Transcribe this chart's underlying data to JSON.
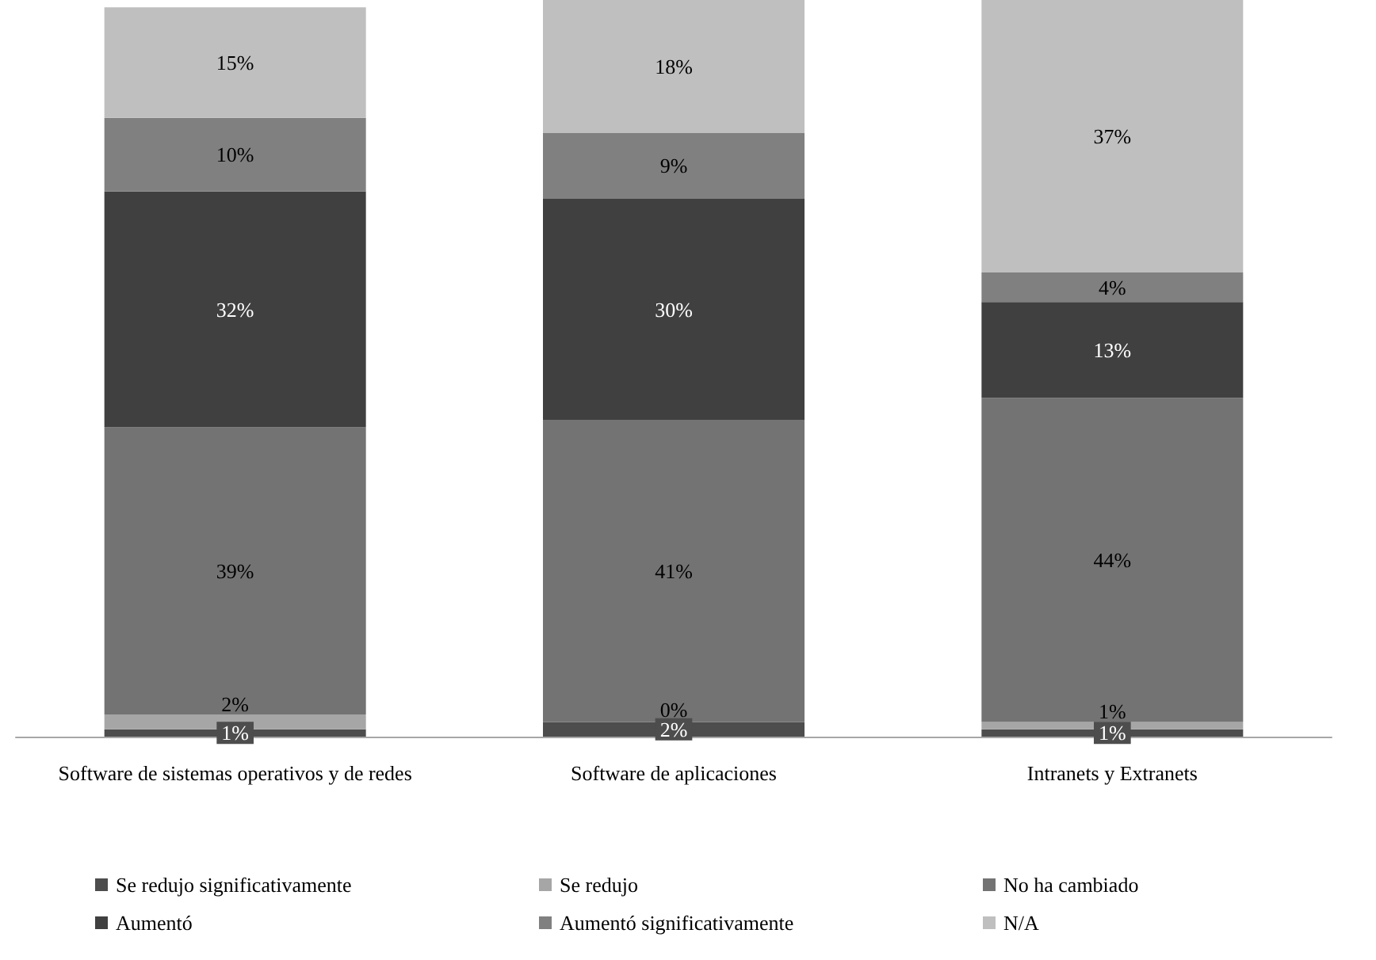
{
  "chart_data": {
    "type": "bar",
    "stacked": true,
    "categories": [
      "Software de sistemas operativos y de redes",
      "Software de aplicaciones",
      "Intranets y Extranets"
    ],
    "series": [
      {
        "name": "Se redujo significativamente",
        "color": "#4d4d4d",
        "values": [
          1,
          2,
          1
        ],
        "value_labels": [
          "1%",
          "2%",
          "1%"
        ]
      },
      {
        "name": "Se redujo",
        "color": "#a6a6a6",
        "values": [
          2,
          0,
          1
        ],
        "value_labels": [
          "2%",
          "0%",
          "1%"
        ]
      },
      {
        "name": "No ha cambiado",
        "color": "#737373",
        "values": [
          39,
          41,
          44
        ],
        "value_labels": [
          "39%",
          "41%",
          "44%"
        ]
      },
      {
        "name": "Aumentó",
        "color": "#404040",
        "values": [
          32,
          30,
          13
        ],
        "value_labels": [
          "32%",
          "30%",
          "13%"
        ]
      },
      {
        "name": "Aumentó significativamente",
        "color": "#808080",
        "values": [
          10,
          9,
          4
        ],
        "value_labels": [
          "10%",
          "9%",
          "4%"
        ]
      },
      {
        "name": "N/A",
        "color": "#bfbfbf",
        "values": [
          15,
          18,
          37
        ],
        "value_labels": [
          "15%",
          "18%",
          "37%"
        ]
      }
    ],
    "tick_labels": "x",
    "grid": false,
    "legend": "bottom"
  }
}
